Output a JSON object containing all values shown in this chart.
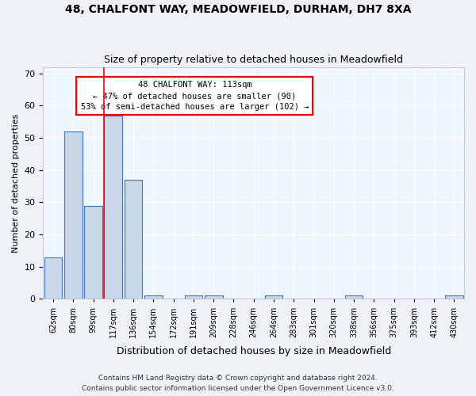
{
  "title1": "48, CHALFONT WAY, MEADOWFIELD, DURHAM, DH7 8XA",
  "title2": "Size of property relative to detached houses in Meadowfield",
  "xlabel": "Distribution of detached houses by size in Meadowfield",
  "ylabel": "Number of detached properties",
  "categories": [
    "62sqm",
    "80sqm",
    "99sqm",
    "117sqm",
    "136sqm",
    "154sqm",
    "172sqm",
    "191sqm",
    "209sqm",
    "228sqm",
    "246sqm",
    "264sqm",
    "283sqm",
    "301sqm",
    "320sqm",
    "338sqm",
    "356sqm",
    "375sqm",
    "393sqm",
    "412sqm",
    "430sqm"
  ],
  "values": [
    13,
    52,
    29,
    57,
    37,
    1,
    0,
    1,
    1,
    0,
    0,
    1,
    0,
    0,
    0,
    1,
    0,
    0,
    0,
    0,
    1
  ],
  "bar_color": "#c8d8e8",
  "bar_edge_color": "#4472c4",
  "red_line_x": 3,
  "annotation_line1": "48 CHALFONT WAY: 113sqm",
  "annotation_line2": "← 47% of detached houses are smaller (90)",
  "annotation_line3": "53% of semi-detached houses are larger (102) →",
  "annotation_box_color": "white",
  "annotation_box_edge": "red",
  "ylim": [
    0,
    72
  ],
  "yticks": [
    0,
    10,
    20,
    30,
    40,
    50,
    60,
    70
  ],
  "footer1": "Contains HM Land Registry data © Crown copyright and database right 2024.",
  "footer2": "Contains public sector information licensed under the Open Government Licence v3.0.",
  "bg_color": "#eef2f7",
  "plot_bg_color": "#eef6ff"
}
